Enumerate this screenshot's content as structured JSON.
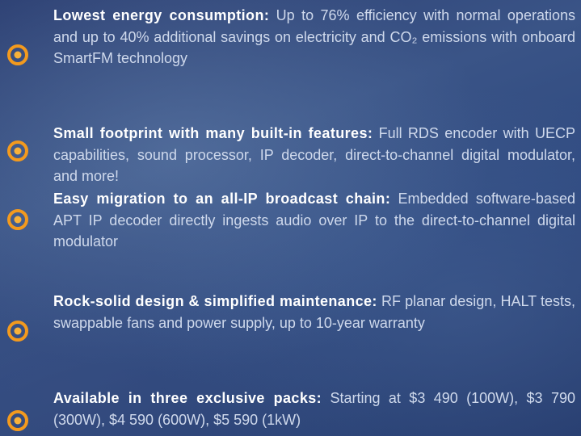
{
  "items": [
    {
      "heading": "Lowest energy consumption:",
      "text": "Up to 76% efficiency with normal operations and up to 40% additional savings on electricity and CO₂ emissions with onboard SmartFM technology"
    },
    {
      "heading": "Small footprint with many built-in features:",
      "text": "Full RDS encoder with UECP capabilities, sound processor, IP decoder, direct-to-channel digital modulator, and more!"
    },
    {
      "heading": "Easy migration to an all-IP broadcast chain:",
      "text": "Embedded software-based APT IP decoder directly ingests audio over IP to the direct-to-channel digital modulator"
    },
    {
      "heading": "Rock-solid design & simplified maintenance:",
      "text": "RF planar design, HALT tests, swappable fans and power supply, up to 10-year warranty"
    },
    {
      "heading": "Available in three exclusive packs:",
      "text": "Starting at $3 490 (100W), $3 790 (300W), $4 590 (600W), $5 590 (1kW)"
    }
  ]
}
